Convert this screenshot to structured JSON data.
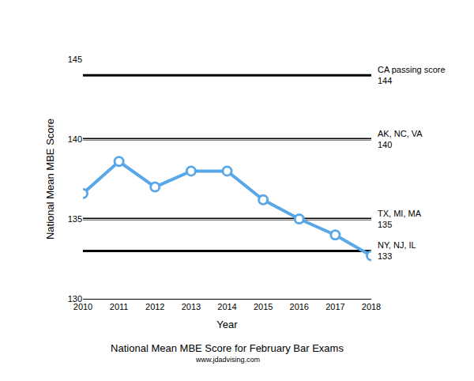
{
  "chart_data": {
    "type": "line",
    "title": "National Mean MBE Score for February Bar Exams",
    "subtitle": "www.jdadvising.com",
    "x_label": "Year",
    "y_label": "National Mean MBE Score",
    "x": [
      2010,
      2011,
      2012,
      2013,
      2014,
      2015,
      2016,
      2017,
      2018
    ],
    "values": [
      136.6,
      138.6,
      137.0,
      138.0,
      138.0,
      136.2,
      135.0,
      134.0,
      132.7
    ],
    "color": "#5aa7e8",
    "marker": "circle-open",
    "line_style": "solid",
    "xlim": [
      2010,
      2018
    ],
    "xticks": [
      2010,
      2011,
      2012,
      2013,
      2014,
      2015,
      2016,
      2017,
      2018
    ],
    "ylim": [
      130,
      145
    ],
    "yticks": [
      130,
      135,
      140,
      145
    ],
    "grid": true,
    "reference_lines": [
      {
        "y": 144,
        "label": "CA passing score"
      },
      {
        "y": 140,
        "label": "AK, NC, VA"
      },
      {
        "y": 135,
        "label": "TX, MI, MA"
      },
      {
        "y": 133,
        "label": "NY, NJ, IL"
      }
    ]
  }
}
